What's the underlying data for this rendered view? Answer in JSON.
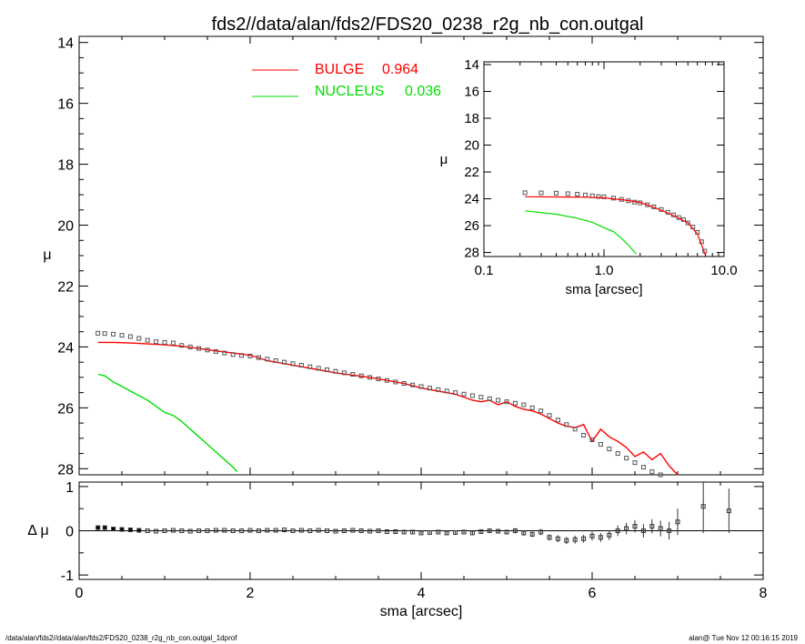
{
  "title": "fds2//data/alan/fds2/FDS20_0238_r2g_nb_con.outgal",
  "footer": {
    "left": "/data/alan/fds2//data/alan/fds2/FDS20_0238_r2g_nb_con.outgal_1dprof",
    "right": "alan@  Tue Nov 12 00:16:15 2019"
  },
  "legend": [
    {
      "label": "BULGE",
      "value": "0.964",
      "color": "#ff0000"
    },
    {
      "label": "NUCLEUS",
      "value": "0.036",
      "color": "#00dd00"
    }
  ],
  "chart_data": [
    {
      "id": "main",
      "type": "line",
      "xlabel": "sma [arcsec]",
      "ylabel": "μ",
      "xlim": [
        0,
        8
      ],
      "ylim": [
        28.2,
        13.8
      ],
      "x_ticks": [
        "0",
        "2",
        "4",
        "6",
        "8"
      ],
      "y_ticks": [
        "14",
        "16",
        "18",
        "20",
        "22",
        "24",
        "26",
        "28"
      ],
      "series": [
        {
          "name": "BULGE",
          "kind": "line",
          "color": "#ff0000",
          "x": [
            0.22,
            0.4,
            0.6,
            0.8,
            1.0,
            1.2,
            1.4,
            1.6,
            1.8,
            2.0,
            2.2,
            2.4,
            2.6,
            2.8,
            3.0,
            3.2,
            3.4,
            3.6,
            3.8,
            4.0,
            4.2,
            4.4,
            4.5,
            4.6,
            4.7,
            4.8,
            4.9,
            5.0,
            5.1,
            5.2,
            5.3,
            5.4,
            5.5,
            5.6,
            5.7,
            5.8,
            5.9,
            6.0,
            6.1,
            6.2,
            6.3,
            6.4,
            6.5,
            6.6,
            6.7,
            6.8,
            6.9,
            7.0
          ],
          "y": [
            23.85,
            23.85,
            23.87,
            23.9,
            23.93,
            23.98,
            24.05,
            24.13,
            24.2,
            24.27,
            24.45,
            24.55,
            24.65,
            24.75,
            24.85,
            24.93,
            25.0,
            25.1,
            25.2,
            25.35,
            25.45,
            25.55,
            25.65,
            25.75,
            25.8,
            25.75,
            25.9,
            25.8,
            25.95,
            26.05,
            26.1,
            26.2,
            26.35,
            26.5,
            26.6,
            26.65,
            26.55,
            27.1,
            26.7,
            26.95,
            27.1,
            27.3,
            27.6,
            27.45,
            27.7,
            27.5,
            27.9,
            28.2
          ]
        },
        {
          "name": "NUCLEUS",
          "kind": "line",
          "color": "#00dd00",
          "x": [
            0.22,
            0.3,
            0.4,
            0.5,
            0.6,
            0.7,
            0.8,
            0.9,
            1.0,
            1.1,
            1.2,
            1.3,
            1.4,
            1.5,
            1.6,
            1.7,
            1.8,
            1.85
          ],
          "y": [
            24.9,
            24.95,
            25.15,
            25.3,
            25.45,
            25.6,
            25.75,
            25.95,
            26.15,
            26.25,
            26.45,
            26.7,
            26.95,
            27.2,
            27.45,
            27.7,
            27.95,
            28.1
          ]
        },
        {
          "name": "",
          "kind": "points",
          "color": "#555555",
          "x": [
            0.22,
            0.3,
            0.4,
            0.5,
            0.6,
            0.7,
            0.8,
            0.9,
            1.0,
            1.1,
            1.2,
            1.3,
            1.4,
            1.5,
            1.6,
            1.7,
            1.8,
            1.9,
            2.0,
            2.1,
            2.2,
            2.3,
            2.4,
            2.5,
            2.6,
            2.7,
            2.8,
            2.9,
            3.0,
            3.1,
            3.2,
            3.3,
            3.4,
            3.5,
            3.6,
            3.7,
            3.8,
            3.9,
            4.0,
            4.1,
            4.2,
            4.3,
            4.4,
            4.5,
            4.6,
            4.7,
            4.8,
            4.9,
            5.0,
            5.1,
            5.2,
            5.3,
            5.4,
            5.5,
            5.6,
            5.7,
            5.8,
            5.9,
            6.0,
            6.1,
            6.2,
            6.3,
            6.4,
            6.5,
            6.6,
            6.7,
            6.8,
            6.9
          ],
          "y": [
            23.55,
            23.56,
            23.58,
            23.62,
            23.66,
            23.72,
            23.78,
            23.83,
            23.85,
            23.87,
            23.95,
            24.0,
            24.05,
            24.1,
            24.15,
            24.2,
            24.25,
            24.28,
            24.3,
            24.35,
            24.4,
            24.45,
            24.5,
            24.55,
            24.6,
            24.65,
            24.7,
            24.75,
            24.8,
            24.85,
            24.9,
            24.95,
            25.0,
            25.05,
            25.1,
            25.15,
            25.2,
            25.25,
            25.3,
            25.35,
            25.4,
            25.45,
            25.5,
            25.55,
            25.6,
            25.65,
            25.7,
            25.75,
            25.8,
            25.85,
            25.9,
            26.0,
            26.1,
            26.25,
            26.4,
            26.55,
            26.7,
            26.9,
            27.05,
            27.2,
            27.35,
            27.5,
            27.65,
            27.8,
            27.95,
            28.1,
            28.2,
            28.3
          ]
        }
      ]
    },
    {
      "id": "inset",
      "type": "line",
      "xlabel": "sma [arcsec]",
      "ylabel": "μ",
      "xscale": "log",
      "xlim": [
        0.1,
        10
      ],
      "ylim": [
        28.3,
        13.8
      ],
      "x_ticks": [
        "0.1",
        "1.0",
        "10.0"
      ],
      "y_ticks": [
        "14",
        "16",
        "18",
        "20",
        "22",
        "24",
        "26",
        "28"
      ],
      "series": [
        {
          "name": "",
          "kind": "points",
          "color": "#555555",
          "x": [
            0.22,
            0.3,
            0.4,
            0.5,
            0.6,
            0.7,
            0.8,
            0.9,
            1.0,
            1.2,
            1.4,
            1.6,
            1.8,
            2.0,
            2.3,
            2.6,
            3.0,
            3.4,
            3.8,
            4.2,
            4.6,
            5.0,
            5.5,
            6.0,
            6.5,
            6.9
          ],
          "y": [
            23.55,
            23.56,
            23.58,
            23.62,
            23.66,
            23.72,
            23.78,
            23.83,
            23.85,
            23.95,
            24.05,
            24.15,
            24.25,
            24.3,
            24.45,
            24.6,
            24.8,
            25.0,
            25.2,
            25.4,
            25.55,
            25.8,
            26.1,
            26.5,
            27.2,
            27.9
          ]
        },
        {
          "name": "",
          "kind": "line",
          "color": "#ff0000",
          "x": [
            0.22,
            0.4,
            0.7,
            1.0,
            1.5,
            2.0,
            3.0,
            4.0,
            5.0,
            6.0,
            7.0
          ],
          "y": [
            23.85,
            23.86,
            23.88,
            23.93,
            24.1,
            24.27,
            24.85,
            25.35,
            25.8,
            26.6,
            28.2
          ]
        },
        {
          "name": "",
          "kind": "line",
          "color": "#00dd00",
          "x": [
            0.22,
            0.4,
            0.6,
            0.8,
            1.0,
            1.2,
            1.4,
            1.6,
            1.85
          ],
          "y": [
            24.9,
            25.15,
            25.45,
            25.75,
            26.15,
            26.45,
            26.95,
            27.45,
            28.1
          ]
        }
      ]
    },
    {
      "id": "residual",
      "type": "scatter",
      "xlabel": "",
      "ylabel": "Δ μ",
      "xlim": [
        0,
        8
      ],
      "ylim": [
        -1.1,
        1.1
      ],
      "y_ticks": [
        "1",
        "0",
        "-1"
      ],
      "reference_line": 0,
      "x": [
        0.22,
        0.3,
        0.4,
        0.5,
        0.6,
        0.7,
        0.8,
        0.9,
        1.0,
        1.1,
        1.2,
        1.3,
        1.4,
        1.5,
        1.6,
        1.7,
        1.8,
        1.9,
        2.0,
        2.1,
        2.2,
        2.3,
        2.4,
        2.5,
        2.6,
        2.7,
        2.8,
        2.9,
        3.0,
        3.1,
        3.2,
        3.3,
        3.4,
        3.5,
        3.6,
        3.7,
        3.8,
        3.9,
        4.0,
        4.1,
        4.2,
        4.3,
        4.4,
        4.5,
        4.6,
        4.7,
        4.8,
        4.9,
        5.0,
        5.1,
        5.2,
        5.3,
        5.4,
        5.5,
        5.6,
        5.7,
        5.8,
        5.9,
        6.0,
        6.1,
        6.2,
        6.3,
        6.4,
        6.5,
        6.6,
        6.7,
        6.8,
        6.9,
        7.0,
        7.3,
        7.6
      ],
      "y": [
        0.07,
        0.07,
        0.04,
        0.03,
        0.02,
        0.01,
        0.0,
        -0.01,
        0.0,
        0.01,
        0.0,
        -0.01,
        0.0,
        0.0,
        0.01,
        0.01,
        0.0,
        0.0,
        0.01,
        0.0,
        0.01,
        0.01,
        0.02,
        0.0,
        0.01,
        0.0,
        0.01,
        0.0,
        -0.01,
        0.0,
        0.01,
        0.0,
        -0.01,
        0.0,
        -0.02,
        -0.02,
        -0.03,
        -0.03,
        -0.05,
        -0.04,
        -0.03,
        -0.05,
        -0.04,
        -0.03,
        -0.05,
        -0.02,
        0.0,
        -0.01,
        -0.03,
        0.0,
        -0.05,
        -0.08,
        -0.03,
        -0.15,
        -0.18,
        -0.22,
        -0.2,
        -0.18,
        -0.12,
        -0.15,
        -0.1,
        0.0,
        0.05,
        0.1,
        0.0,
        0.1,
        0.05,
        0.0,
        0.2,
        0.55,
        0.45
      ],
      "err": [
        0.01,
        0.01,
        0.01,
        0.01,
        0.01,
        0.01,
        0.01,
        0.01,
        0.01,
        0.01,
        0.01,
        0.01,
        0.01,
        0.01,
        0.01,
        0.01,
        0.01,
        0.01,
        0.01,
        0.01,
        0.01,
        0.01,
        0.01,
        0.01,
        0.01,
        0.01,
        0.01,
        0.01,
        0.02,
        0.02,
        0.02,
        0.02,
        0.02,
        0.02,
        0.02,
        0.03,
        0.03,
        0.03,
        0.03,
        0.03,
        0.03,
        0.04,
        0.04,
        0.04,
        0.04,
        0.05,
        0.05,
        0.05,
        0.05,
        0.06,
        0.06,
        0.06,
        0.07,
        0.07,
        0.08,
        0.08,
        0.09,
        0.09,
        0.1,
        0.1,
        0.11,
        0.12,
        0.13,
        0.14,
        0.15,
        0.16,
        0.18,
        0.2,
        0.3,
        0.6,
        0.5
      ]
    }
  ]
}
